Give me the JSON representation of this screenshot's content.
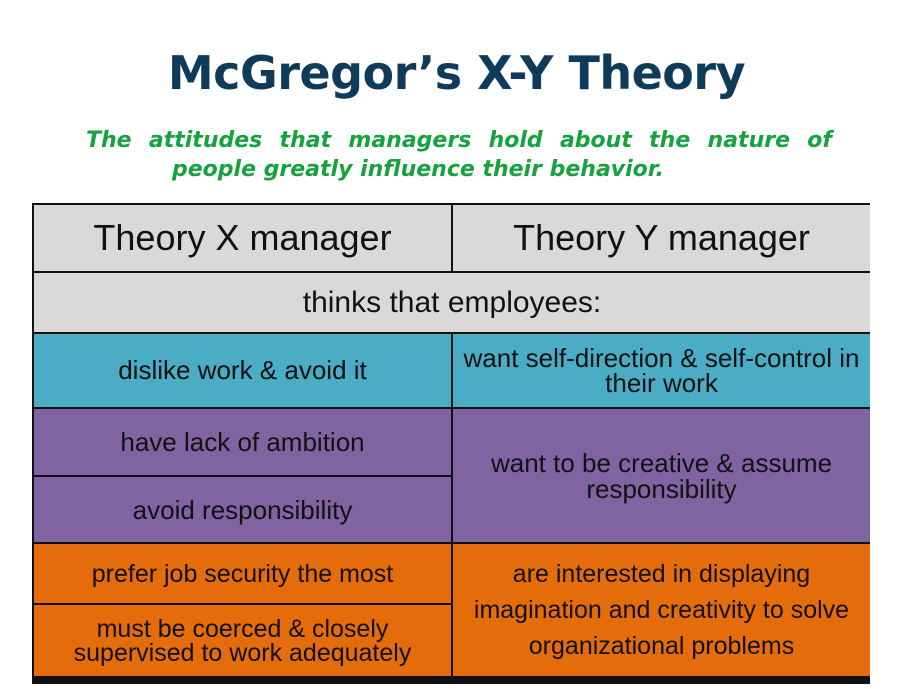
{
  "title": "McGregor’s X-Y Theory",
  "subtitle": {
    "line1": "The attitudes that managers hold about the nature of",
    "line2": "people greatly influence their behavior."
  },
  "table": {
    "header_x": "Theory X manager",
    "header_y": "Theory Y manager",
    "subheader": "thinks that employees:",
    "x_items": [
      "dislike work & avoid it",
      "have lack of ambition",
      "avoid responsibility",
      "prefer job security the most",
      "must be coerced & closely supervised to work adequately"
    ],
    "y_items": [
      "want self-direction & self-control in their work",
      "want to be creative & assume responsibility",
      "are interested in displaying imagination and creativity to solve organizational problems"
    ]
  },
  "colors": {
    "title": "#0f3b5a",
    "subtitle": "#15a33e",
    "header_bg": "#d9d9d9",
    "teal": "#4bacc6",
    "purple": "#8064a2",
    "orange": "#e46c0a",
    "border": "#111111"
  }
}
